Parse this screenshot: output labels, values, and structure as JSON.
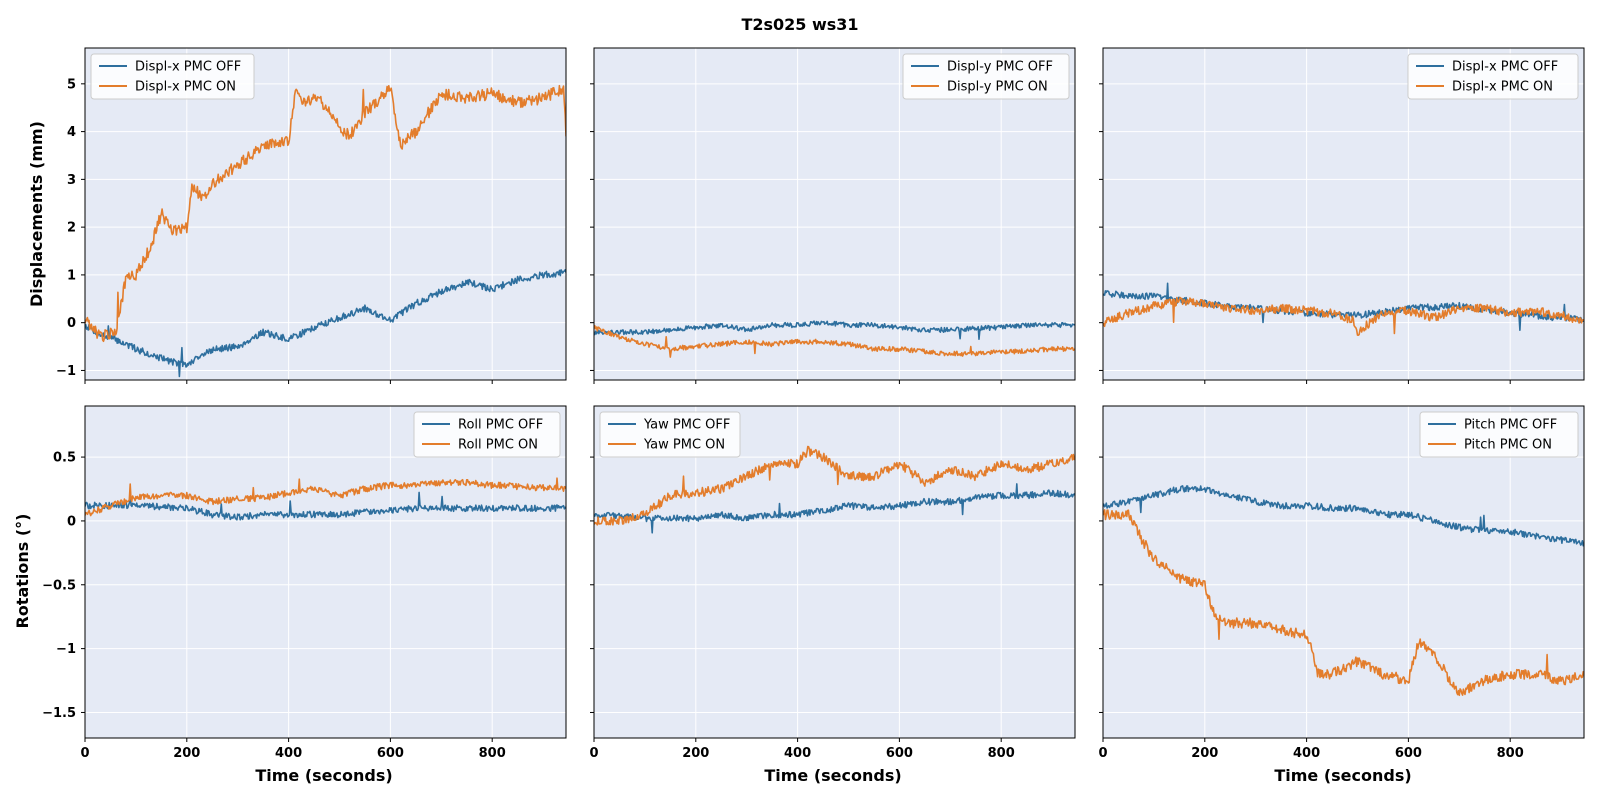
{
  "figure": {
    "title": "T2s025  ws31",
    "ylabel_top": "Displacements (mm)",
    "ylabel_bottom": "Rotations (°)",
    "xlabel": "Time (seconds)"
  },
  "colors": {
    "off": "#2e6f9e",
    "on": "#e37d2c",
    "axes_bg": "#e5eaf5",
    "grid": "#ffffff"
  },
  "chart_data": [
    {
      "type": "line",
      "xlabel": "",
      "ylabel": "Displacements (mm)",
      "xlim": [
        0,
        945
      ],
      "ylim": [
        -1.2,
        5.75
      ],
      "xticks": [
        0,
        200,
        400,
        600,
        800
      ],
      "yticks": [
        -1,
        0,
        1,
        2,
        3,
        4,
        5
      ],
      "grid": true,
      "legend": "upper left",
      "series": [
        {
          "name": "Displ-x PMC OFF",
          "x": [
            0,
            30,
            60,
            100,
            150,
            200,
            230,
            260,
            300,
            350,
            400,
            450,
            500,
            550,
            600,
            650,
            700,
            750,
            800,
            850,
            900,
            945
          ],
          "y": [
            -0.05,
            -0.25,
            -0.35,
            -0.55,
            -0.75,
            -0.9,
            -0.65,
            -0.55,
            -0.5,
            -0.2,
            -0.35,
            -0.1,
            0.1,
            0.3,
            0.05,
            0.4,
            0.65,
            0.85,
            0.7,
            0.9,
            1.0,
            1.05
          ],
          "noise": 0.07
        },
        {
          "name": "Displ-x PMC ON",
          "x": [
            0,
            30,
            60,
            80,
            100,
            130,
            150,
            170,
            200,
            210,
            230,
            260,
            300,
            350,
            400,
            415,
            430,
            460,
            500,
            520,
            550,
            600,
            620,
            650,
            700,
            750,
            800,
            850,
            900,
            940,
            945
          ],
          "y": [
            0.05,
            -0.3,
            -0.2,
            0.9,
            1.0,
            1.6,
            2.3,
            1.9,
            2.0,
            2.9,
            2.6,
            3.0,
            3.3,
            3.7,
            3.8,
            5.0,
            4.6,
            4.7,
            4.1,
            3.9,
            4.4,
            4.9,
            3.7,
            4.0,
            4.8,
            4.7,
            4.8,
            4.6,
            4.7,
            4.9,
            3.9
          ],
          "noise": 0.12
        }
      ]
    },
    {
      "type": "line",
      "xlabel": "",
      "ylabel": "",
      "xlim": [
        0,
        945
      ],
      "ylim": [
        -1.2,
        5.75
      ],
      "xticks": [
        0,
        200,
        400,
        600,
        800
      ],
      "yticks": [
        -1,
        0,
        1,
        2,
        3,
        4,
        5
      ],
      "grid": true,
      "legend": "upper right",
      "series": [
        {
          "name": "Displ-y PMC OFF",
          "x": [
            0,
            100,
            200,
            250,
            300,
            350,
            400,
            450,
            500,
            550,
            600,
            650,
            700,
            750,
            800,
            850,
            900,
            945
          ],
          "y": [
            -0.2,
            -0.2,
            -0.1,
            -0.05,
            -0.15,
            -0.05,
            -0.05,
            0.0,
            -0.05,
            -0.05,
            -0.1,
            -0.15,
            -0.15,
            -0.12,
            -0.1,
            -0.05,
            -0.05,
            -0.05
          ],
          "noise": 0.05
        },
        {
          "name": "Displ-y PMC ON",
          "x": [
            0,
            50,
            100,
            150,
            200,
            250,
            300,
            350,
            400,
            450,
            500,
            550,
            600,
            650,
            700,
            750,
            800,
            850,
            900,
            945
          ],
          "y": [
            -0.1,
            -0.3,
            -0.45,
            -0.55,
            -0.5,
            -0.45,
            -0.4,
            -0.45,
            -0.4,
            -0.4,
            -0.45,
            -0.55,
            -0.55,
            -0.6,
            -0.65,
            -0.65,
            -0.6,
            -0.6,
            -0.55,
            -0.55
          ],
          "noise": 0.05
        }
      ]
    },
    {
      "type": "line",
      "xlabel": "",
      "ylabel": "",
      "xlim": [
        0,
        945
      ],
      "ylim": [
        -1.2,
        5.75
      ],
      "xticks": [
        0,
        200,
        400,
        600,
        800
      ],
      "yticks": [
        -1,
        0,
        1,
        2,
        3,
        4,
        5
      ],
      "grid": true,
      "legend": "upper right",
      "series": [
        {
          "name": "Displ-x PMC OFF",
          "x": [
            0,
            100,
            200,
            300,
            400,
            500,
            600,
            700,
            800,
            900,
            945
          ],
          "y": [
            0.6,
            0.55,
            0.4,
            0.3,
            0.2,
            0.15,
            0.3,
            0.35,
            0.2,
            0.1,
            0.05
          ],
          "noise": 0.07
        },
        {
          "name": "Displ-x PMC ON",
          "x": [
            0,
            50,
            100,
            150,
            200,
            250,
            300,
            350,
            400,
            450,
            490,
            500,
            550,
            600,
            650,
            700,
            750,
            800,
            850,
            900,
            945
          ],
          "y": [
            0.0,
            0.2,
            0.35,
            0.45,
            0.4,
            0.3,
            0.25,
            0.3,
            0.25,
            0.2,
            0.05,
            -0.2,
            0.2,
            0.25,
            0.1,
            0.3,
            0.3,
            0.2,
            0.25,
            0.15,
            0.05
          ],
          "noise": 0.09
        }
      ]
    },
    {
      "type": "line",
      "xlabel": "Time (seconds)",
      "ylabel": "Rotations (°)",
      "xlim": [
        0,
        945
      ],
      "ylim": [
        -1.7,
        0.9
      ],
      "xticks": [
        0,
        200,
        400,
        600,
        800
      ],
      "yticks": [
        -1.5,
        -1.0,
        -0.5,
        0.0,
        0.5
      ],
      "grid": true,
      "legend": "upper right",
      "series": [
        {
          "name": "Roll PMC OFF",
          "x": [
            0,
            100,
            200,
            250,
            300,
            350,
            400,
            450,
            500,
            550,
            600,
            650,
            700,
            750,
            800,
            850,
            900,
            945
          ],
          "y": [
            0.12,
            0.12,
            0.1,
            0.05,
            0.03,
            0.05,
            0.05,
            0.05,
            0.05,
            0.07,
            0.08,
            0.1,
            0.1,
            0.1,
            0.1,
            0.1,
            0.1,
            0.1
          ],
          "noise": 0.025
        },
        {
          "name": "Roll PMC ON",
          "x": [
            0,
            50,
            100,
            150,
            200,
            250,
            300,
            350,
            400,
            450,
            500,
            550,
            600,
            650,
            700,
            750,
            800,
            850,
            900,
            945
          ],
          "y": [
            0.05,
            0.12,
            0.18,
            0.2,
            0.2,
            0.15,
            0.17,
            0.18,
            0.22,
            0.25,
            0.2,
            0.25,
            0.28,
            0.28,
            0.3,
            0.3,
            0.28,
            0.27,
            0.26,
            0.25
          ],
          "noise": 0.025
        }
      ]
    },
    {
      "type": "line",
      "xlabel": "Time (seconds)",
      "ylabel": "",
      "xlim": [
        0,
        945
      ],
      "ylim": [
        -1.7,
        0.9
      ],
      "xticks": [
        0,
        200,
        400,
        600,
        800
      ],
      "yticks": [
        -1.5,
        -1.0,
        -0.5,
        0.0,
        0.5
      ],
      "grid": true,
      "legend": "upper left",
      "series": [
        {
          "name": "Yaw PMC OFF",
          "x": [
            0,
            100,
            200,
            250,
            300,
            350,
            400,
            450,
            500,
            550,
            600,
            650,
            700,
            750,
            800,
            850,
            900,
            945
          ],
          "y": [
            0.05,
            0.02,
            0.02,
            0.05,
            0.02,
            0.05,
            0.05,
            0.08,
            0.12,
            0.1,
            0.12,
            0.15,
            0.15,
            0.18,
            0.2,
            0.2,
            0.22,
            0.2
          ],
          "noise": 0.025
        },
        {
          "name": "Yaw PMC ON",
          "x": [
            0,
            50,
            100,
            150,
            200,
            250,
            300,
            350,
            400,
            420,
            450,
            500,
            550,
            600,
            650,
            700,
            750,
            800,
            850,
            900,
            945
          ],
          "y": [
            0.0,
            0.0,
            0.05,
            0.2,
            0.22,
            0.25,
            0.35,
            0.45,
            0.45,
            0.55,
            0.5,
            0.35,
            0.35,
            0.45,
            0.3,
            0.4,
            0.35,
            0.45,
            0.4,
            0.45,
            0.5
          ],
          "noise": 0.035
        }
      ]
    },
    {
      "type": "line",
      "xlabel": "Time (seconds)",
      "ylabel": "",
      "xlim": [
        0,
        945
      ],
      "ylim": [
        -1.7,
        0.9
      ],
      "xticks": [
        0,
        200,
        400,
        600,
        800
      ],
      "yticks": [
        -1.5,
        -1.0,
        -0.5,
        0.0,
        0.5
      ],
      "grid": true,
      "legend": "upper right",
      "series": [
        {
          "name": "Pitch PMC OFF",
          "x": [
            0,
            50,
            100,
            150,
            200,
            250,
            300,
            350,
            400,
            450,
            500,
            550,
            600,
            650,
            700,
            750,
            800,
            850,
            900,
            945
          ],
          "y": [
            0.12,
            0.15,
            0.2,
            0.25,
            0.25,
            0.2,
            0.15,
            0.12,
            0.12,
            0.1,
            0.1,
            0.05,
            0.05,
            0.0,
            -0.05,
            -0.08,
            -0.08,
            -0.12,
            -0.15,
            -0.18
          ],
          "noise": 0.025
        },
        {
          "name": "Pitch PMC ON",
          "x": [
            0,
            50,
            70,
            100,
            150,
            200,
            220,
            250,
            300,
            350,
            400,
            410,
            420,
            450,
            500,
            550,
            600,
            620,
            650,
            700,
            750,
            800,
            850,
            900,
            945
          ],
          "y": [
            0.05,
            0.05,
            -0.1,
            -0.3,
            -0.45,
            -0.5,
            -0.75,
            -0.8,
            -0.8,
            -0.85,
            -0.9,
            -1.0,
            -1.2,
            -1.2,
            -1.1,
            -1.2,
            -1.25,
            -0.95,
            -1.05,
            -1.35,
            -1.25,
            -1.2,
            -1.2,
            -1.25,
            -1.2
          ],
          "noise": 0.04
        }
      ]
    }
  ]
}
